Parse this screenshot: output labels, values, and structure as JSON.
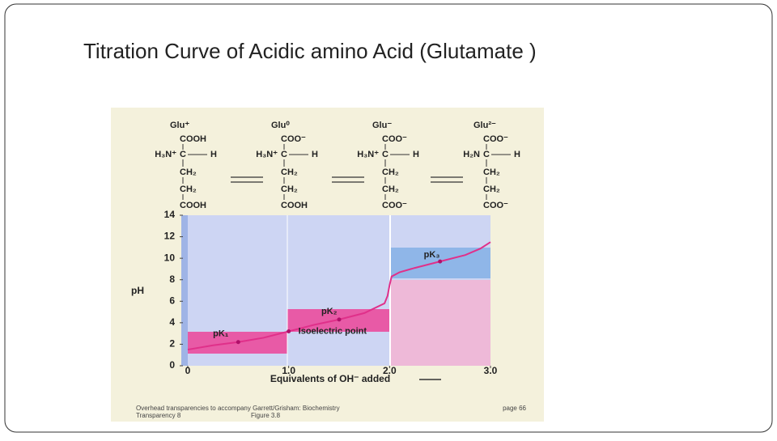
{
  "chart_data": {
    "type": "line",
    "title": "Titration Curve  of  Acidic amino Acid (Glutamate )",
    "xlabel": "Equivalents of OH⁻ added",
    "ylabel": "pH",
    "xlim": [
      0,
      3
    ],
    "xticks": [
      0,
      {
        "value": 1,
        "label": "1.0"
      },
      {
        "value": 2,
        "label": "2.0"
      },
      {
        "value": 3,
        "label": "3.0"
      }
    ],
    "ylim": [
      0,
      14
    ],
    "yticks": [
      0,
      2,
      4,
      6,
      8,
      10,
      12,
      14
    ],
    "series": [
      {
        "color": "#e0308a",
        "x": [
          0,
          0.25,
          0.5,
          0.75,
          1,
          1.25,
          1.5,
          1.75,
          1.95,
          1.98,
          2,
          2.02,
          2.1,
          2.25,
          2.5,
          2.75,
          2.9,
          3
        ],
        "values": [
          1.5,
          1.9,
          2.2,
          2.6,
          3.2,
          3.8,
          4.3,
          4.9,
          5.8,
          6.5,
          7.5,
          8.3,
          8.7,
          9.1,
          9.7,
          10.3,
          10.9,
          11.5
        ]
      }
    ],
    "annotations": [
      {
        "text": "pK₁",
        "x": 0.5,
        "y": 2.2
      },
      {
        "text": "Isoelectric point",
        "x": 1,
        "y": 3.2
      },
      {
        "text": "pK₂",
        "x": 1.5,
        "y": 4.3
      },
      {
        "text": "pK₃",
        "x": 2.5,
        "y": 9.7
      }
    ]
  },
  "structures": [
    {
      "label": "Glu⁺",
      "top": "COOH",
      "left": "H₃N⁺",
      "right": "H",
      "mid": [
        "CH₂",
        "CH₂"
      ],
      "bottom": "COOH"
    },
    {
      "label": "Glu⁰",
      "top": "COO⁻",
      "left": "H₃N⁺",
      "right": "H",
      "mid": [
        "CH₂",
        "CH₂"
      ],
      "bottom": "COOH"
    },
    {
      "label": "Glu⁻",
      "top": "COO⁻",
      "left": "H₃N⁺",
      "right": "H",
      "mid": [
        "CH₂",
        "CH₂"
      ],
      "bottom": "COO⁻"
    },
    {
      "label": "Glu²⁻",
      "top": "COO⁻",
      "left": "H₂N",
      "right": "H",
      "mid": [
        "CH₂",
        "CH₂"
      ],
      "bottom": "COO⁻"
    }
  ],
  "footer": {
    "left": "Overhead transparencies to accompany Garrett/Grisham: Biochemistry",
    "right": "page 66",
    "left2": "Transparency 8",
    "mid2": "Figure 3.8"
  }
}
